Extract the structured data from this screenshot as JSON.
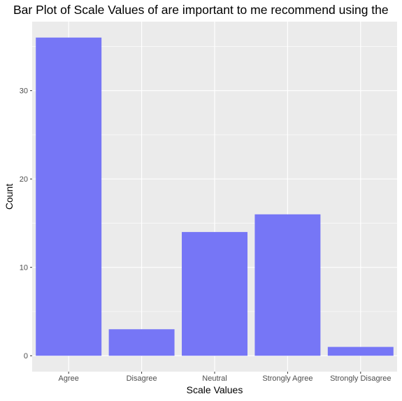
{
  "chart_data": {
    "type": "bar",
    "title": "Bar Plot of Scale Values of are important to me recommend using the",
    "xlabel": "Scale Values",
    "ylabel": "Count",
    "categories": [
      "Agree",
      "Disagree",
      "Neutral",
      "Strongly Agree",
      "Strongly Disagree"
    ],
    "values": [
      36,
      3,
      14,
      16,
      1
    ],
    "ylim": [
      -1.8,
      37.8
    ],
    "yticks": [
      0,
      10,
      20,
      30
    ],
    "grid": true,
    "bar_color": "#7676f6",
    "panel_background": "#ebebeb",
    "grid_color": "#ffffff"
  }
}
